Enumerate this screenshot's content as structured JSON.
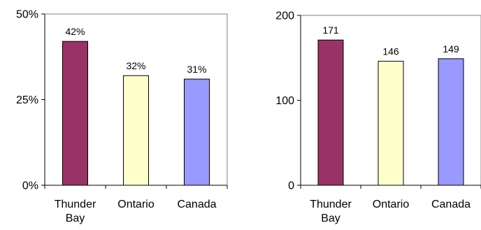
{
  "chart_data": [
    {
      "type": "bar",
      "title": "",
      "xlabel": "",
      "ylabel": "",
      "categories": [
        "Thunder Bay",
        "Ontario",
        "Canada"
      ],
      "values": [
        42,
        32,
        31
      ],
      "data_labels": [
        "42%",
        "32%",
        "31%"
      ],
      "ylim": [
        0,
        50
      ],
      "yticks": [
        0,
        25,
        50
      ],
      "ytick_labels": [
        "0%",
        "25%",
        "50%"
      ],
      "colors": [
        "#993366",
        "#ffffcc",
        "#9999ff"
      ],
      "grid": false,
      "legend": "none"
    },
    {
      "type": "bar",
      "title": "",
      "xlabel": "",
      "ylabel": "",
      "categories": [
        "Thunder Bay",
        "Ontario",
        "Canada"
      ],
      "values": [
        171,
        146,
        149
      ],
      "data_labels": [
        "171",
        "146",
        "149"
      ],
      "ylim": [
        0,
        200
      ],
      "yticks": [
        0,
        100,
        200
      ],
      "ytick_labels": [
        "0",
        "100",
        "200"
      ],
      "colors": [
        "#993366",
        "#ffffcc",
        "#9999ff"
      ],
      "grid": false,
      "legend": "none"
    }
  ]
}
